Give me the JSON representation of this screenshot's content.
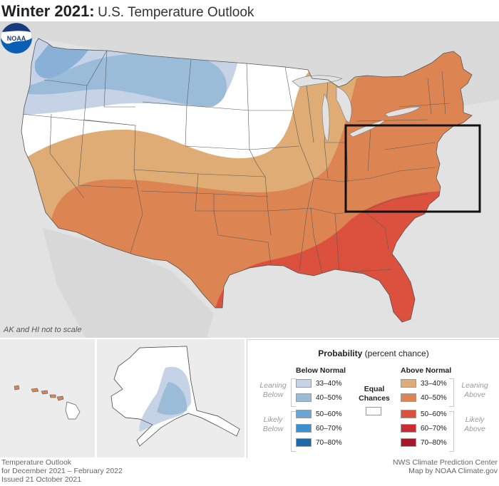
{
  "title": {
    "bold": "Winter 2021:",
    "rest": "U.S. Temperature Outlook"
  },
  "map": {
    "scale_note": "AK and HI not to scale",
    "logo": "NOAA",
    "highlight_box": "rectangle outlining the Ohio Valley / Mid-Atlantic region"
  },
  "legend": {
    "title_bold": "Probability",
    "title_rest": "(percent chance)",
    "below_header": "Below Normal",
    "above_header": "Above Normal",
    "equal_line1": "Equal",
    "equal_line2": "Chances",
    "leaning_below": [
      "Leaning",
      "Below"
    ],
    "likely_below": [
      "Likely",
      "Below"
    ],
    "leaning_above": [
      "Leaning",
      "Above"
    ],
    "likely_above": [
      "Likely",
      "Above"
    ],
    "below_bins": [
      {
        "label": "33–40%",
        "color": "#c6d3e6"
      },
      {
        "label": "40–50%",
        "color": "#9bbcd9"
      },
      {
        "label": "50–60%",
        "color": "#6aa5d4"
      },
      {
        "label": "60–70%",
        "color": "#3a91cf"
      },
      {
        "label": "70–80%",
        "color": "#1c68a8"
      }
    ],
    "above_bins": [
      {
        "label": "33–40%",
        "color": "#deac74"
      },
      {
        "label": "40–50%",
        "color": "#dc8552"
      },
      {
        "label": "50–60%",
        "color": "#dc503e"
      },
      {
        "label": "60–70%",
        "color": "#cb2c33"
      },
      {
        "label": "70–80%",
        "color": "#a6172a"
      }
    ],
    "equal_color": "#ffffff"
  },
  "footer": {
    "left": [
      "Temperature Outlook",
      "for December 2021 – February 2022",
      "Issued 21 October 2021"
    ],
    "right": [
      "NWS Climate Prediction Center",
      "Map by NOAA Climate.gov"
    ]
  }
}
